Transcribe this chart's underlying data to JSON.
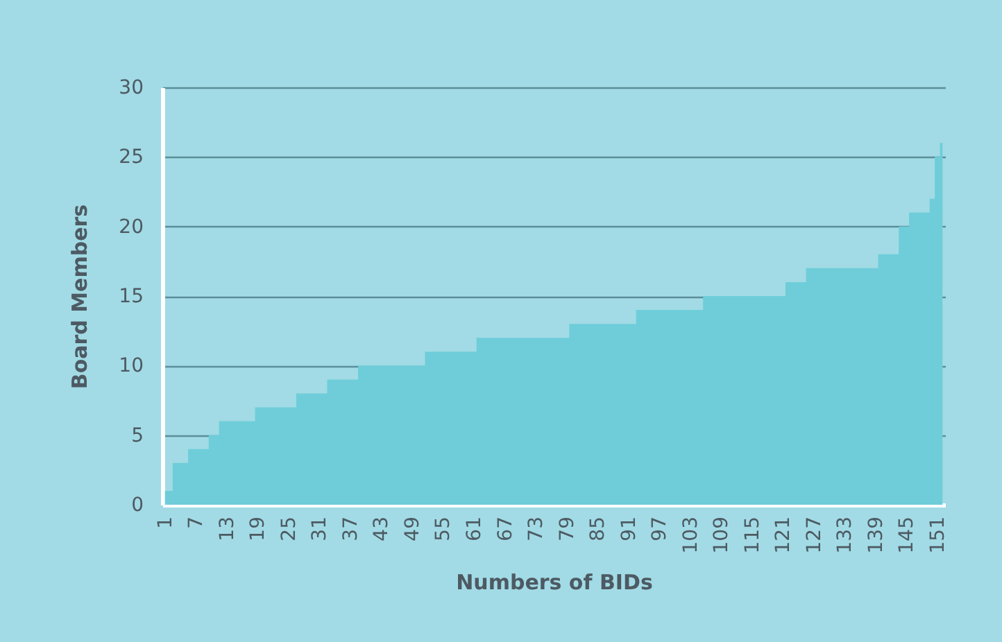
{
  "chart_data": {
    "type": "area",
    "xlabel": "Numbers of BIDs",
    "ylabel": "Board Members",
    "categories": [
      "1",
      null,
      null,
      null,
      null,
      null,
      "7",
      null,
      null,
      null,
      null,
      null,
      "13",
      null,
      null,
      null,
      null,
      null,
      "19",
      null,
      null,
      null,
      null,
      null,
      "25",
      null,
      null,
      null,
      null,
      null,
      "31",
      null,
      null,
      null,
      null,
      null,
      "37",
      null,
      null,
      null,
      null,
      null,
      "43",
      null,
      null,
      null,
      null,
      null,
      "49",
      null,
      null,
      null,
      null,
      null,
      "55",
      null,
      null,
      null,
      null,
      null,
      "61",
      null,
      null,
      null,
      null,
      null,
      "67",
      null,
      null,
      null,
      null,
      null,
      "73",
      null,
      null,
      null,
      null,
      null,
      "79",
      null,
      null,
      null,
      null,
      null,
      "85",
      null,
      null,
      null,
      null,
      null,
      "91",
      null,
      null,
      null,
      null,
      null,
      "97",
      null,
      null,
      null,
      null,
      null,
      "103",
      null,
      null,
      null,
      null,
      null,
      "109",
      null,
      null,
      null,
      null,
      null,
      "115",
      null,
      null,
      null,
      null,
      null,
      "121",
      null,
      null,
      null,
      null,
      null,
      "127",
      null,
      null,
      null,
      null,
      null,
      "133",
      null,
      null,
      null,
      null,
      null,
      "139",
      null,
      null,
      null,
      null,
      null,
      "145",
      null,
      null,
      null,
      null,
      null,
      "151",
      null
    ],
    "values": [
      1,
      1,
      3,
      3,
      3,
      4,
      4,
      4,
      4,
      5,
      5,
      6,
      6,
      6,
      6,
      6,
      6,
      6,
      7,
      7,
      7,
      7,
      7,
      7,
      7,
      7,
      8,
      8,
      8,
      8,
      8,
      8,
      9,
      9,
      9,
      9,
      9,
      9,
      10,
      10,
      10,
      10,
      10,
      10,
      10,
      10,
      10,
      10,
      10,
      10,
      10,
      11,
      11,
      11,
      11,
      11,
      11,
      11,
      11,
      11,
      11,
      12,
      12,
      12,
      12,
      12,
      12,
      12,
      12,
      12,
      12,
      12,
      12,
      12,
      12,
      12,
      12,
      12,
      12,
      13,
      13,
      13,
      13,
      13,
      13,
      13,
      13,
      13,
      13,
      13,
      13,
      13,
      14,
      14,
      14,
      14,
      14,
      14,
      14,
      14,
      14,
      14,
      14,
      14,
      14,
      15,
      15,
      15,
      15,
      15,
      15,
      15,
      15,
      15,
      15,
      15,
      15,
      15,
      15,
      15,
      15,
      16,
      16,
      16,
      16,
      17,
      17,
      17,
      17,
      17,
      17,
      17,
      17,
      17,
      17,
      17,
      17,
      17,
      17,
      18,
      18,
      18,
      18,
      20,
      20,
      21,
      21,
      21,
      21,
      22,
      25,
      26
    ],
    "color": "#6ecdd9",
    "ylim": [
      0,
      30
    ],
    "yticks": [
      0,
      5,
      10,
      15,
      20,
      25,
      30
    ],
    "grid": "y"
  }
}
